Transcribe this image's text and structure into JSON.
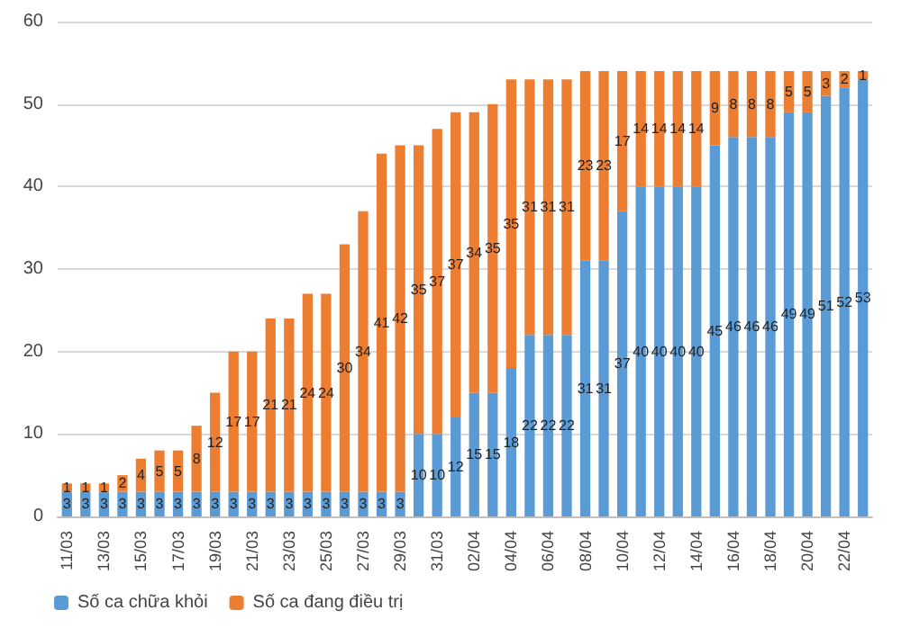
{
  "chart_data": {
    "type": "bar",
    "stacked": true,
    "categories": [
      "11/03",
      null,
      "13/03",
      null,
      "15/03",
      null,
      "17/03",
      null,
      "19/03",
      null,
      "21/03",
      null,
      "23/03",
      null,
      "25/03",
      null,
      "27/03",
      null,
      "29/03",
      null,
      "31/03",
      null,
      "02/04",
      null,
      "04/04",
      null,
      "06/04",
      null,
      "08/04",
      null,
      "10/04",
      null,
      "12/04",
      null,
      "14/04",
      null,
      "16/04",
      null,
      "18/04",
      null,
      "20/04",
      null,
      "22/04",
      null
    ],
    "series": [
      {
        "name": "Số ca chữa khỏi",
        "color": "#5b9bd5",
        "values": [
          3,
          3,
          3,
          3,
          3,
          3,
          3,
          3,
          3,
          3,
          3,
          3,
          3,
          3,
          3,
          3,
          3,
          3,
          3,
          10,
          10,
          12,
          15,
          15,
          18,
          22,
          22,
          22,
          31,
          31,
          37,
          40,
          40,
          40,
          40,
          45,
          46,
          46,
          46,
          49,
          49,
          51,
          52,
          53
        ]
      },
      {
        "name": "Số ca đang điều trị",
        "color": "#ed7d31",
        "values": [
          1,
          1,
          1,
          2,
          4,
          5,
          5,
          8,
          12,
          17,
          17,
          21,
          21,
          24,
          24,
          30,
          34,
          41,
          42,
          35,
          37,
          37,
          34,
          35,
          35,
          31,
          31,
          31,
          23,
          23,
          17,
          14,
          14,
          14,
          14,
          9,
          8,
          8,
          8,
          5,
          5,
          3,
          2,
          1
        ]
      }
    ],
    "ylim": [
      0,
      60
    ],
    "yticks": [
      0,
      10,
      20,
      30,
      40,
      50,
      60
    ],
    "grid": "y",
    "legend": "bottom",
    "data_labels": true
  }
}
